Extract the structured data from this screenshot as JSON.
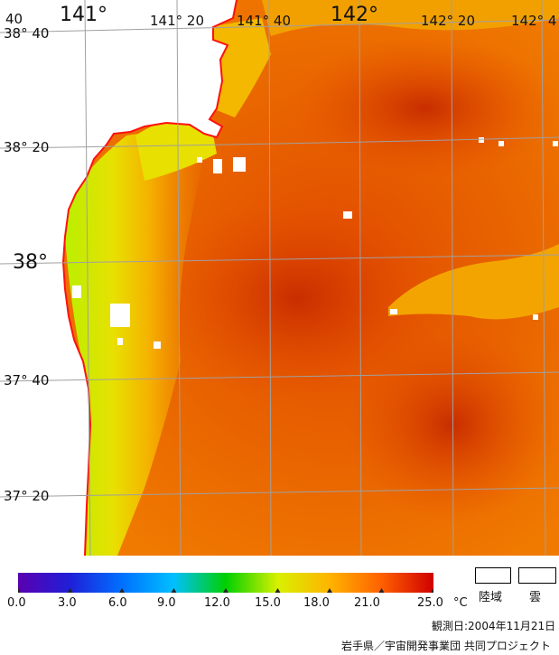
{
  "map": {
    "lon_labels": [
      "141°",
      "141° 20",
      "141° 40",
      "142°",
      "142° 20",
      "142° 4"
    ],
    "lat_labels": [
      "38° 40",
      "38° 20",
      "38°",
      "37° 40",
      "37° 20"
    ],
    "corner_label": "40"
  },
  "colorbar": {
    "ticks": [
      "0.0",
      "3.0",
      "6.0",
      "9.0",
      "12.0",
      "15.0",
      "18.0",
      "21.0",
      "25.0"
    ],
    "unit": "°C",
    "colors": [
      "#5a00b0",
      "#1f1fd8",
      "#0070ff",
      "#00c0ff",
      "#00d000",
      "#d8f000",
      "#ffb400",
      "#ff6000",
      "#d00000"
    ]
  },
  "legend": {
    "land_label": "陸域",
    "cloud_label": "雲"
  },
  "footer": {
    "date": "観測日:2004年11月21日",
    "credit": "岩手県／宇宙開発事業団 共同プロジェクト"
  }
}
